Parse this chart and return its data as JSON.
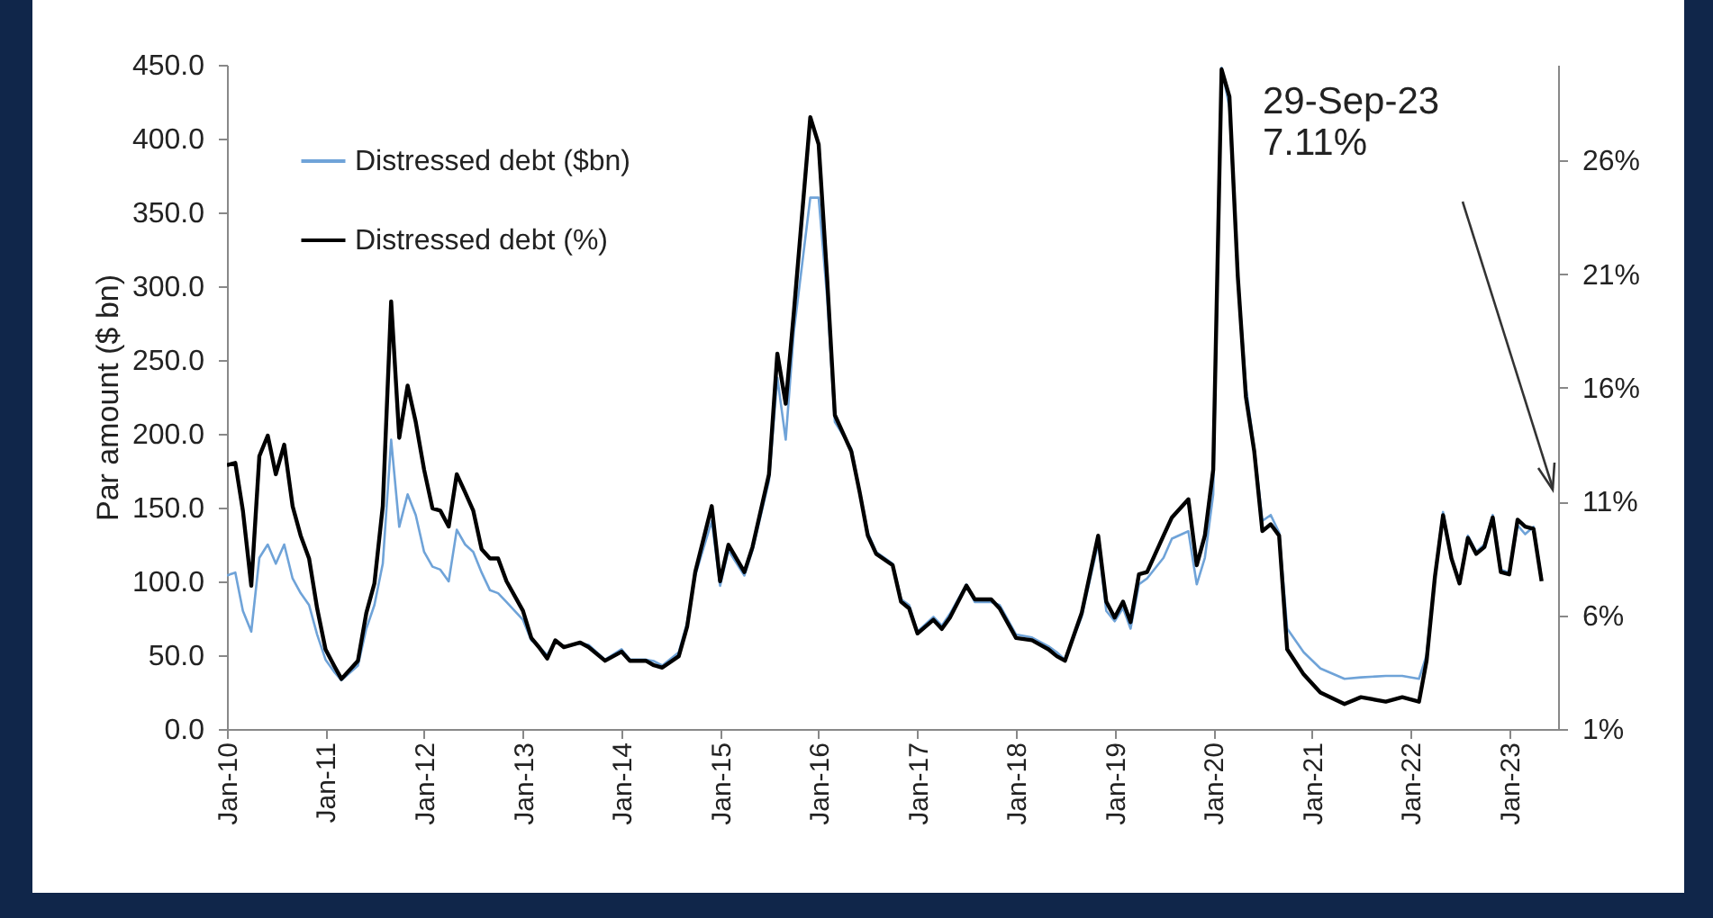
{
  "chart_data": {
    "type": "line",
    "ylabel": "Par amount ($ bn)",
    "annotations": [
      "29-Sep-23\n7.11%"
    ],
    "legend": "top left",
    "grid": false,
    "x": [
      "2010-01",
      "2010-02",
      "2010-03",
      "2010-04",
      "2010-05",
      "2010-06",
      "2010-07",
      "2010-08",
      "2010-09",
      "2010-10",
      "2010-11",
      "2010-12",
      "2011-01",
      "2011-02",
      "2011-03",
      "2011-05",
      "2011-06",
      "2011-07",
      "2011-08",
      "2011-09",
      "2011-10",
      "2011-11",
      "2011-12",
      "2012-01",
      "2012-02",
      "2012-03",
      "2012-04",
      "2012-05",
      "2012-06",
      "2012-07",
      "2012-08",
      "2012-09",
      "2012-10",
      "2012-11",
      "2013-01",
      "2013-02",
      "2013-03",
      "2013-04",
      "2013-05",
      "2013-06",
      "2013-08",
      "2013-09",
      "2013-11",
      "2014-01",
      "2014-02",
      "2014-04",
      "2014-05",
      "2014-06",
      "2014-08",
      "2014-09",
      "2014-10",
      "2014-12",
      "2015-01",
      "2015-02",
      "2015-04",
      "2015-05",
      "2015-07",
      "2015-08",
      "2015-09",
      "2015-10",
      "2015-12",
      "2016-01",
      "2016-02",
      "2016-03",
      "2016-05",
      "2016-06",
      "2016-07",
      "2016-08",
      "2016-10",
      "2016-11",
      "2016-12",
      "2017-01",
      "2017-03",
      "2017-04",
      "2017-05",
      "2017-07",
      "2017-08",
      "2017-10",
      "2017-11",
      "2018-01",
      "2018-03",
      "2018-05",
      "2018-06",
      "2018-07",
      "2018-09",
      "2018-11",
      "2018-12",
      "2019-01",
      "2019-02",
      "2019-03",
      "2019-04",
      "2019-05",
      "2019-07",
      "2019-08",
      "2019-10",
      "2019-11",
      "2019-12",
      "2020-01",
      "2020-02",
      "2020-03",
      "2020-04",
      "2020-05",
      "2020-06",
      "2020-07",
      "2020-08",
      "2020-09",
      "2020-10",
      "2020-12",
      "2021-02",
      "2021-05",
      "2021-07",
      "2021-10",
      "2021-12",
      "2022-02",
      "2022-03",
      "2022-04",
      "2022-05",
      "2022-06",
      "2022-07",
      "2022-08",
      "2022-09",
      "2022-10",
      "2022-11",
      "2022-12",
      "2023-01",
      "2023-02",
      "2023-03",
      "2023-04",
      "2023-05"
    ],
    "series": [
      {
        "name": "Distressed debt ($bn)",
        "color": "#6fa3d8",
        "axis": "y",
        "values": [
          104,
          106,
          80,
          66,
          116,
          125,
          112,
          125,
          102,
          92,
          84,
          64,
          47,
          39,
          33,
          43,
          68,
          84,
          112,
          196,
          137,
          159,
          145,
          120,
          110,
          108,
          100,
          135,
          125,
          120,
          106,
          94,
          92,
          86,
          74,
          60,
          56,
          50,
          60,
          56,
          58,
          57,
          47,
          54,
          47,
          47,
          46,
          43,
          52,
          72,
          104,
          141,
          97,
          121,
          104,
          121,
          168,
          238,
          196,
          269,
          360,
          360,
          293,
          208,
          190,
          161,
          133,
          120,
          112,
          88,
          84,
          66,
          76,
          70,
          78,
          98,
          86,
          86,
          84,
          64,
          62,
          56,
          52,
          47,
          76,
          126,
          80,
          73,
          82,
          68,
          98,
          102,
          116,
          129,
          134,
          98,
          116,
          159,
          448,
          421,
          307,
          232,
          190,
          141,
          145,
          133,
          68,
          52,
          41,
          34,
          35,
          36,
          36,
          34,
          50,
          104,
          147,
          116,
          100,
          131,
          120,
          125,
          145,
          108,
          106,
          138,
          132,
          137,
          102
        ]
      },
      {
        "name": "Distressed debt (%)",
        "color": "#000000",
        "axis": "y2",
        "values": [
          12.6,
          12.7,
          10.6,
          7.3,
          13.0,
          13.9,
          12.2,
          13.5,
          10.8,
          9.5,
          8.5,
          6.3,
          4.5,
          3.8,
          3.2,
          4.0,
          6.1,
          7.4,
          10.8,
          19.8,
          13.8,
          16.1,
          14.5,
          12.4,
          10.7,
          10.6,
          9.9,
          12.2,
          11.4,
          10.6,
          8.9,
          8.5,
          8.5,
          7.5,
          6.2,
          5.0,
          4.6,
          4.1,
          4.9,
          4.6,
          4.8,
          4.6,
          4.0,
          4.4,
          4.0,
          4.0,
          3.8,
          3.7,
          4.2,
          5.5,
          7.9,
          10.8,
          7.5,
          9.1,
          7.9,
          9.0,
          12.2,
          17.5,
          15.3,
          19.3,
          27.9,
          26.7,
          20.9,
          14.8,
          13.2,
          11.4,
          9.5,
          8.7,
          8.2,
          6.6,
          6.3,
          5.2,
          5.8,
          5.4,
          5.9,
          7.3,
          6.7,
          6.7,
          6.3,
          5.0,
          4.9,
          4.5,
          4.2,
          4.0,
          6.1,
          9.5,
          6.6,
          5.9,
          6.6,
          5.7,
          7.8,
          7.9,
          9.5,
          10.3,
          11.1,
          8.2,
          9.5,
          12.4,
          30.0,
          28.8,
          20.9,
          15.6,
          13.2,
          9.7,
          10.0,
          9.5,
          4.5,
          3.4,
          2.6,
          2.1,
          2.4,
          2.2,
          2.4,
          2.2,
          4.0,
          7.7,
          10.4,
          8.5,
          7.4,
          9.4,
          8.7,
          9.0,
          10.3,
          7.9,
          7.8,
          10.2,
          9.9,
          9.8,
          7.5
        ]
      }
    ],
    "xlim": [
      "2010-01",
      "2023-07"
    ],
    "xticks": [
      {
        "value": "2010-01",
        "label": "Jan-10"
      },
      {
        "value": "2011-01",
        "label": "Jan-11"
      },
      {
        "value": "2012-01",
        "label": "Jan-12"
      },
      {
        "value": "2013-01",
        "label": "Jan-13"
      },
      {
        "value": "2014-01",
        "label": "Jan-14"
      },
      {
        "value": "2015-01",
        "label": "Jan-15"
      },
      {
        "value": "2016-01",
        "label": "Jan-16"
      },
      {
        "value": "2017-01",
        "label": "Jan-17"
      },
      {
        "value": "2018-01",
        "label": "Jan-18"
      },
      {
        "value": "2019-01",
        "label": "Jan-19"
      },
      {
        "value": "2020-01",
        "label": "Jan-20"
      },
      {
        "value": "2021-01",
        "label": "Jan-21"
      },
      {
        "value": "2022-01",
        "label": "Jan-22"
      },
      {
        "value": "2023-01",
        "label": "Jan-23"
      }
    ],
    "ylim": [
      0,
      450
    ],
    "yticks": [
      {
        "value": 0,
        "label": "0.0"
      },
      {
        "value": 50,
        "label": "50.0"
      },
      {
        "value": 100,
        "label": "100.0"
      },
      {
        "value": 150,
        "label": "150.0"
      },
      {
        "value": 200,
        "label": "200.0"
      },
      {
        "value": 250,
        "label": "250.0"
      },
      {
        "value": 300,
        "label": "300.0"
      },
      {
        "value": 350,
        "label": "350.0"
      },
      {
        "value": 400,
        "label": "400.0"
      },
      {
        "value": 450,
        "label": "450.0"
      }
    ],
    "y2lim": [
      1,
      30.2
    ],
    "y2ticks": [
      {
        "value": 1,
        "label": "1%"
      },
      {
        "value": 6,
        "label": "6%"
      },
      {
        "value": 11,
        "label": "11%"
      },
      {
        "value": 16,
        "label": "16%"
      },
      {
        "value": 21,
        "label": "21%"
      },
      {
        "value": 26,
        "label": "26%"
      }
    ]
  }
}
